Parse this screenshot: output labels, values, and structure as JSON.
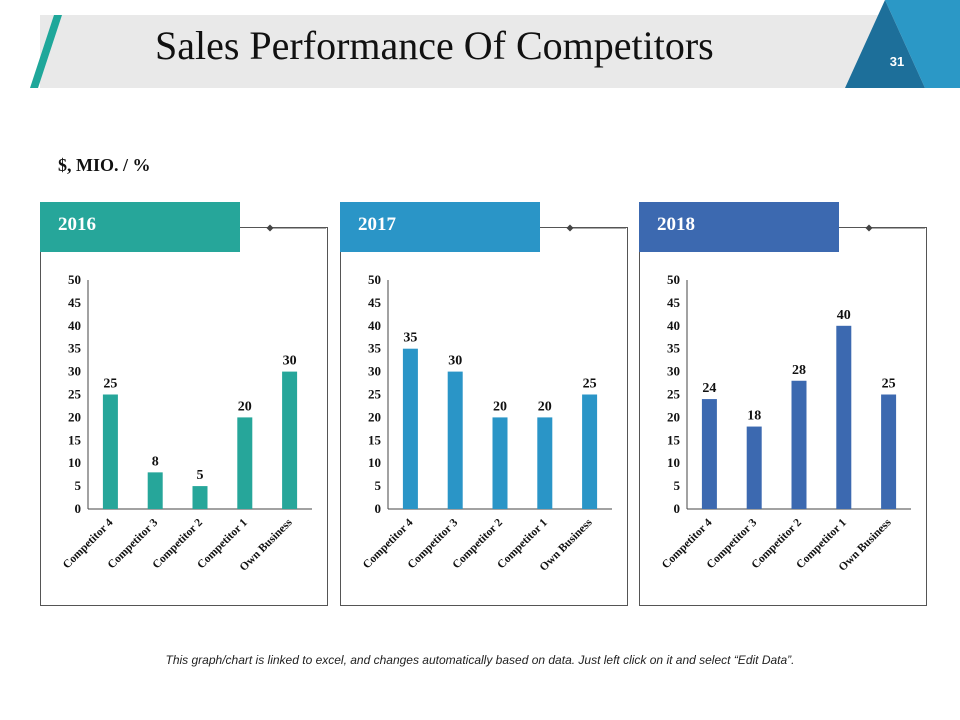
{
  "slide": {
    "title": "Sales Performance Of Competitors",
    "page_number": "31",
    "unit_label": "$, MIO. / %",
    "footnote": "This graph/chart is linked to excel, and changes automatically based on data. Just left click on it and select “Edit Data”."
  },
  "colors": {
    "title_stripe": "#1fa79a",
    "corner_dark": "#1d6f9a",
    "corner_light": "#2b98c6",
    "panel_2016": "#26a69a",
    "panel_2017": "#2a95c7",
    "panel_2018": "#3c69b0"
  },
  "chart_data": [
    {
      "type": "bar",
      "title": "2016",
      "categories": [
        "Competitor 4",
        "Competitor 3",
        "Competitor 2",
        "Competitor 1",
        "Own Business"
      ],
      "values": [
        25,
        8,
        5,
        20,
        30
      ],
      "yticks": [
        0,
        5,
        10,
        15,
        20,
        25,
        30,
        35,
        40,
        45,
        50
      ],
      "ylim": [
        0,
        50
      ],
      "ylabel": "$, MIO. / %",
      "color": "#26a69a"
    },
    {
      "type": "bar",
      "title": "2017",
      "categories": [
        "Competitor 4",
        "Competitor 3",
        "Competitor 2",
        "Competitor 1",
        "Own Business"
      ],
      "values": [
        35,
        30,
        20,
        20,
        25
      ],
      "yticks": [
        0,
        5,
        10,
        15,
        20,
        25,
        30,
        35,
        40,
        45,
        50
      ],
      "ylim": [
        0,
        50
      ],
      "ylabel": "$, MIO. / %",
      "color": "#2a95c7"
    },
    {
      "type": "bar",
      "title": "2018",
      "categories": [
        "Competitor 4",
        "Competitor 3",
        "Competitor 2",
        "Competitor 1",
        "Own Business"
      ],
      "values": [
        24,
        18,
        28,
        40,
        25
      ],
      "yticks": [
        0,
        5,
        10,
        15,
        20,
        25,
        30,
        35,
        40,
        45,
        50
      ],
      "ylim": [
        0,
        50
      ],
      "ylabel": "$, MIO. / %",
      "color": "#3c69b0"
    }
  ]
}
